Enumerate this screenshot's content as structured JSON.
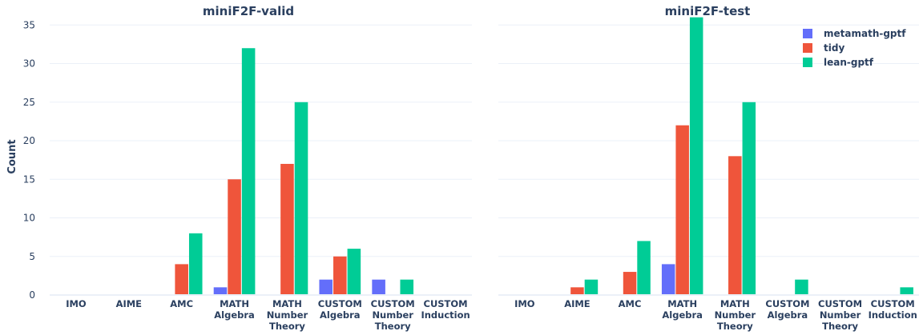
{
  "chart_data": [
    {
      "type": "bar",
      "title": "miniF2F-valid",
      "xlabel": "",
      "ylabel": "Count",
      "ylim": [
        0,
        37
      ],
      "yticks": [
        0,
        5,
        10,
        15,
        20,
        25,
        30,
        35
      ],
      "categories": [
        "IMO",
        "AIME",
        "AMC",
        "MATH Algebra",
        "MATH Number Theory",
        "CUSTOM Algebra",
        "CUSTOM Number Theory",
        "CUSTOM Induction"
      ],
      "series": [
        {
          "name": "metamath-gptf",
          "color": "#636efa",
          "values": [
            0,
            0,
            0,
            1,
            0,
            2,
            2,
            0
          ]
        },
        {
          "name": "tidy",
          "color": "#ef553b",
          "values": [
            0,
            0,
            4,
            15,
            17,
            5,
            0,
            0
          ]
        },
        {
          "name": "lean-gptf",
          "color": "#00cc96",
          "values": [
            0,
            0,
            8,
            32,
            25,
            6,
            2,
            0
          ]
        }
      ],
      "grid": true
    },
    {
      "type": "bar",
      "title": "miniF2F-test",
      "xlabel": "",
      "ylabel": "",
      "ylim": [
        0,
        37
      ],
      "categories": [
        "IMO",
        "AIME",
        "AMC",
        "MATH Algebra",
        "MATH Number Theory",
        "CUSTOM Algebra",
        "CUSTOM Number Theory",
        "CUSTOM Induction"
      ],
      "series": [
        {
          "name": "metamath-gptf",
          "color": "#636efa",
          "values": [
            0,
            0,
            0,
            4,
            0,
            0,
            0,
            0
          ]
        },
        {
          "name": "tidy",
          "color": "#ef553b",
          "values": [
            0,
            1,
            3,
            22,
            18,
            0,
            0,
            0
          ]
        },
        {
          "name": "lean-gptf",
          "color": "#00cc96",
          "values": [
            0,
            2,
            7,
            36,
            25,
            2,
            0,
            1
          ]
        }
      ],
      "grid": true
    }
  ],
  "legend": {
    "placement": "top-right",
    "items": [
      {
        "name": "metamath-gptf",
        "color": "#636efa"
      },
      {
        "name": "tidy",
        "color": "#ef553b"
      },
      {
        "name": "lean-gptf",
        "color": "#00cc96"
      }
    ]
  },
  "colors": {
    "grid": "#ebf0f8",
    "axis_text": "#2a3f5f",
    "background": "#ffffff"
  }
}
